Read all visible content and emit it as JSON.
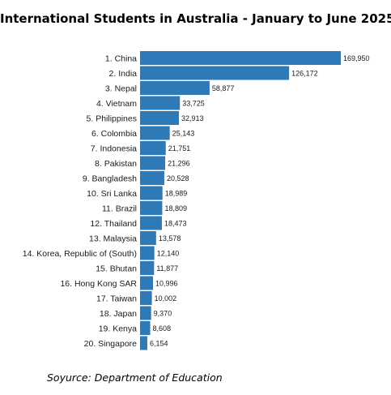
{
  "chart_data": {
    "type": "bar",
    "orientation": "horizontal",
    "title": "International Students in Australia - January to June 2025",
    "categories": [
      "1. China",
      "2. India",
      "3. Nepal",
      "4. Vietnam",
      "5. Philippines",
      "6. Colombia",
      "7. Indonesia",
      "8. Pakistan",
      "9. Bangladesh",
      "10. Sri Lanka",
      "11. Brazil",
      "12. Thailand",
      "13. Malaysia",
      "14. Korea, Republic of (South)",
      "15. Bhutan",
      "16. Hong Kong SAR",
      "17. Taiwan",
      "18. Japan",
      "19. Kenya",
      "20. Singapore"
    ],
    "values": [
      169950,
      126172,
      58877,
      33725,
      32913,
      25143,
      21751,
      21296,
      20528,
      18989,
      18809,
      18473,
      13578,
      12140,
      11877,
      10996,
      10002,
      9370,
      8608,
      6154
    ],
    "value_labels": [
      "169,950",
      "126,172",
      "58,877",
      "33,725",
      "32,913",
      "25,143",
      "21,751",
      "21,296",
      "20,528",
      "18,989",
      "18,809",
      "18,473",
      "13,578",
      "12,140",
      "11,877",
      "10,996",
      "10,002",
      "9,370",
      "8,608",
      "6,154"
    ],
    "xlim": [
      0,
      169950
    ],
    "bar_color": "#2e7ab8",
    "grid": false,
    "legend": "none",
    "source": "Soyurce: Department of Education"
  }
}
